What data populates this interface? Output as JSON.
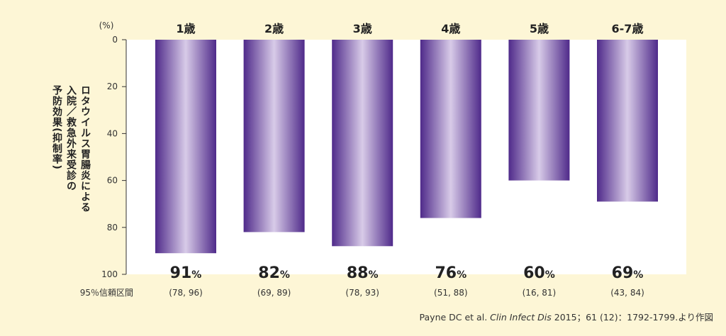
{
  "chart_data": {
    "type": "bar",
    "orientation": "vertical-inverted",
    "categories": [
      "1歳",
      "2歳",
      "3歳",
      "4歳",
      "5歳",
      "6-7歳"
    ],
    "values": [
      91,
      82,
      88,
      76,
      60,
      69
    ],
    "value_labels": [
      "91",
      "82",
      "88",
      "76",
      "60",
      "69"
    ],
    "value_unit": "%",
    "confidence_intervals": [
      "(78, 96)",
      "(69, 89)",
      "(78, 93)",
      "(51, 88)",
      "(16, 81)",
      "(43, 84)"
    ],
    "ci_label": "95％信頼区間",
    "ylabel_lines": [
      "ロタウイルス胃腸炎による",
      "入院／救急外来受診の",
      "予防効果(抑制率)"
    ],
    "yunit": "(%)",
    "yticks": [
      0,
      20,
      40,
      60,
      80,
      100
    ],
    "ylim": [
      0,
      100
    ],
    "y_inverted": true,
    "grid": false,
    "bar_colors": {
      "edge": "#4f2a8a",
      "center": "#d8cbe8"
    }
  },
  "source": {
    "authors": "Payne DC et al.",
    "journal": "Clin Infect Dis",
    "details": "2015；61 (12)：1792-1799.より作図"
  }
}
